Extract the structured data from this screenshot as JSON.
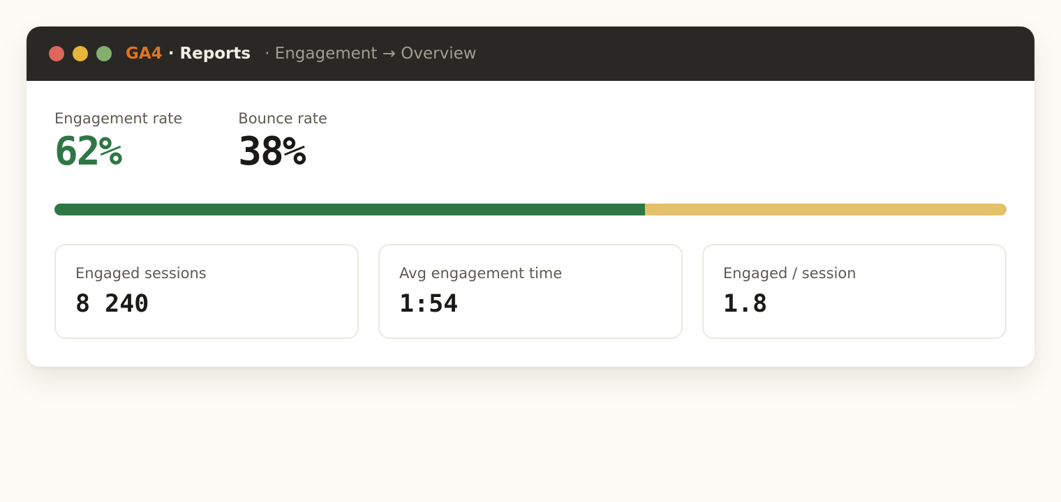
{
  "window": {
    "controls": [
      {
        "name": "close-button",
        "color": "#e0665a"
      },
      {
        "name": "minimize-button",
        "color": "#e8b43c"
      },
      {
        "name": "maximize-button",
        "color": "#84b06e"
      }
    ],
    "brand": "GA4",
    "separator": " · ",
    "section": "Reports",
    "breadcrumb": "· Engagement → Overview"
  },
  "metrics": {
    "engagement": {
      "label": "Engagement rate",
      "value": "62%",
      "color": "#2e7745"
    },
    "bounce": {
      "label": "Bounce rate",
      "value": "38%",
      "color": "#1b1a17"
    }
  },
  "split_bar": {
    "engaged_fraction": 0.62,
    "engaged_color": "#2e7745",
    "bounce_color": "#e3c06a"
  },
  "cards": [
    {
      "label": "Engaged sessions",
      "value": "8 240"
    },
    {
      "label": "Avg engagement time",
      "value": "1:54"
    },
    {
      "label": "Engaged / session",
      "value": "1.8"
    }
  ]
}
